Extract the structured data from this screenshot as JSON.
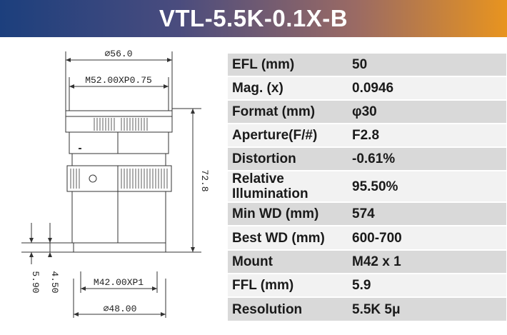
{
  "title": "VTL-5.5K-0.1X-B",
  "drawing": {
    "dims": {
      "outer_diameter": "∅56.0",
      "thread_top": "M52.00XP0.75",
      "length": "72.8",
      "thread_bottom": "M42.00XP1",
      "bottom_diameter": "∅48.00",
      "flange_a": "5.90",
      "flange_b": "4.50"
    }
  },
  "specs": [
    {
      "key": "EFL (mm)",
      "value": "50"
    },
    {
      "key": "Mag. (x)",
      "value": "0.0946"
    },
    {
      "key": "Format (mm)",
      "value": "φ30"
    },
    {
      "key": "Aperture(F/#)",
      "value": "F2.8"
    },
    {
      "key": "Distortion",
      "value": "-0.61%"
    },
    {
      "key": "Relative Illumination",
      "value": "95.50%"
    },
    {
      "key": "Min WD (mm)",
      "value": "574"
    },
    {
      "key": "Best WD (mm)",
      "value": "600-700"
    },
    {
      "key": "Mount",
      "value": "M42 x 1"
    },
    {
      "key": "FFL (mm)",
      "value": "5.9"
    },
    {
      "key": "Resolution",
      "value": "5.5K 5μ"
    }
  ]
}
